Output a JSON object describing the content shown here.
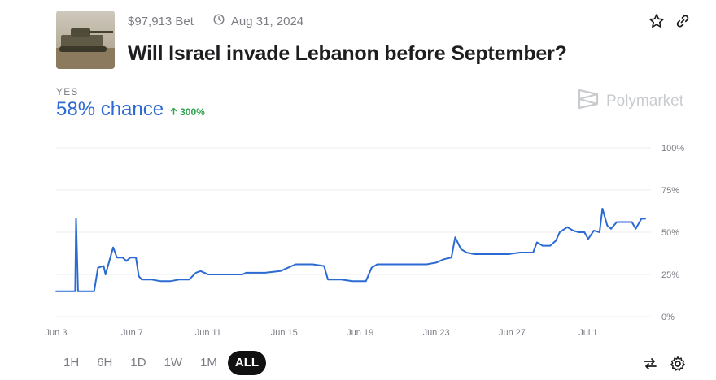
{
  "market": {
    "volume": "$97,913 Bet",
    "end_date": "Aug 31, 2024",
    "title": "Will Israel invade Lebanon before September?",
    "outcome_label": "YES",
    "chance": "58% chance",
    "change": "300%",
    "change_direction": "up"
  },
  "brand": {
    "name": "Polymarket"
  },
  "icons": {
    "clock": "clock-icon",
    "star": "star-icon",
    "link": "link-icon",
    "swap": "swap-icon",
    "settings": "gear-icon",
    "brand_logo": "polymarket-logo-icon",
    "arrow": "arrow-up-icon"
  },
  "colors": {
    "line": "#2c6ad3",
    "chance": "#2c6ad3",
    "positive": "#2ea44f",
    "active_range_bg": "#111111"
  },
  "time_ranges": [
    "1H",
    "6H",
    "1D",
    "1W",
    "1M",
    "ALL"
  ],
  "selected_range": "ALL",
  "chart_data": {
    "type": "line",
    "title": "",
    "xlabel": "",
    "ylabel": "",
    "ylim": [
      0,
      100
    ],
    "y_ticks": [
      "100%",
      "75%",
      "50%",
      "25%",
      "0%"
    ],
    "y_tick_values": [
      100,
      75,
      50,
      25,
      0
    ],
    "x_ticks": [
      "Jun 3",
      "Jun 7",
      "Jun 11",
      "Jun 15",
      "Jun 19",
      "Jun 23",
      "Jun 27",
      "Jul 1"
    ],
    "grid": true,
    "series": [
      {
        "values": [
          [
            0,
            15
          ],
          [
            1.0,
            15
          ],
          [
            1.05,
            58
          ],
          [
            1.15,
            15
          ],
          [
            2.0,
            15
          ],
          [
            2.2,
            29
          ],
          [
            2.5,
            30
          ],
          [
            2.6,
            25
          ],
          [
            3.0,
            41
          ],
          [
            3.2,
            35
          ],
          [
            3.5,
            35
          ],
          [
            3.7,
            33
          ],
          [
            3.9,
            35
          ],
          [
            4.2,
            35
          ],
          [
            4.35,
            24
          ],
          [
            4.5,
            22
          ],
          [
            5.0,
            22
          ],
          [
            5.5,
            21
          ],
          [
            6.0,
            21
          ],
          [
            6.5,
            22
          ],
          [
            7.0,
            22
          ],
          [
            7.35,
            26
          ],
          [
            7.6,
            27
          ],
          [
            8.0,
            25
          ],
          [
            9.0,
            25
          ],
          [
            9.8,
            25
          ],
          [
            10.0,
            26
          ],
          [
            11.0,
            26
          ],
          [
            11.8,
            27
          ],
          [
            12.2,
            29
          ],
          [
            12.6,
            31
          ],
          [
            13.5,
            31
          ],
          [
            14.1,
            30
          ],
          [
            14.3,
            22
          ],
          [
            15.0,
            22
          ],
          [
            15.6,
            21
          ],
          [
            16.3,
            21
          ],
          [
            16.6,
            29
          ],
          [
            16.9,
            31
          ],
          [
            18.0,
            31
          ],
          [
            18.8,
            31
          ],
          [
            19.5,
            31
          ],
          [
            20.0,
            32
          ],
          [
            20.4,
            34
          ],
          [
            20.8,
            35
          ],
          [
            21.0,
            47
          ],
          [
            21.3,
            40
          ],
          [
            21.6,
            38
          ],
          [
            22.0,
            37
          ],
          [
            23.0,
            37
          ],
          [
            23.8,
            37
          ],
          [
            24.4,
            38
          ],
          [
            25.1,
            38
          ],
          [
            25.3,
            44
          ],
          [
            25.6,
            42
          ],
          [
            26.0,
            42
          ],
          [
            26.3,
            45
          ],
          [
            26.5,
            50
          ],
          [
            26.9,
            53
          ],
          [
            27.2,
            51
          ],
          [
            27.5,
            50
          ],
          [
            27.8,
            50
          ],
          [
            28.0,
            46
          ],
          [
            28.3,
            51
          ],
          [
            28.6,
            50
          ],
          [
            28.75,
            64
          ],
          [
            29.0,
            54
          ],
          [
            29.2,
            52
          ],
          [
            29.5,
            56
          ],
          [
            30.0,
            56
          ],
          [
            30.3,
            56
          ],
          [
            30.5,
            52
          ],
          [
            30.8,
            58
          ],
          [
            31.0,
            58
          ]
        ]
      }
    ]
  }
}
